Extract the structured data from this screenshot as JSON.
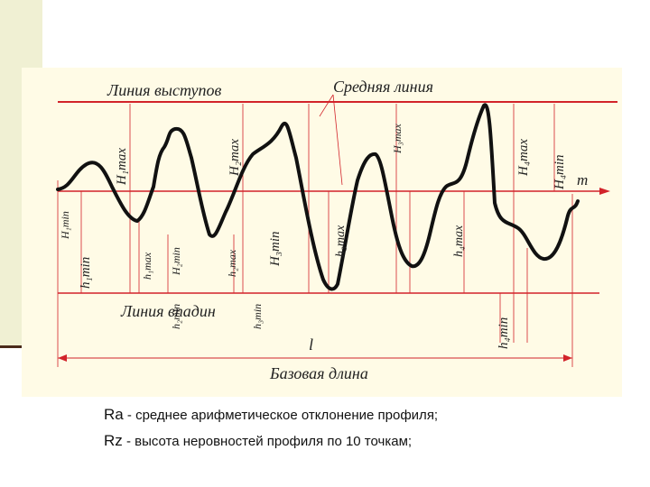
{
  "diagram": {
    "labels": {
      "peaks_line": "Линия выступов",
      "mean_line": "Средняя линия",
      "valleys_line": "Линия впадин",
      "base_length_symbol": "l",
      "base_length": "Базовая длина",
      "mean_axis": "m"
    },
    "H_max": [
      "H₁max",
      "H₂max",
      "H₃max",
      "H₄max"
    ],
    "H_min": [
      "H₁min",
      "H₂min",
      "H₃min",
      "H₄min"
    ],
    "h_max": [
      "h₁max",
      "h₂max",
      "h₃max",
      "h₄max"
    ],
    "h_min": [
      "h₁min",
      "h₂min",
      "h₃min",
      "h₄min"
    ]
  },
  "captions": [
    {
      "term": "Ra",
      "text": " - среднее арифметическое отклонение профиля;"
    },
    {
      "term": "Rz",
      "text": " - высота неровностей профиля по 10 точкам;"
    }
  ],
  "colors": {
    "background": "#fffbe6",
    "red_lines": "#d2232a",
    "profile": "#111111",
    "side_bar": "#f0f0d3"
  }
}
